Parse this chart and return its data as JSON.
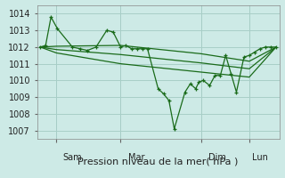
{
  "title": "Pression niveau de la mer( hPa )",
  "bg_color": "#cdeae6",
  "grid_color": "#a8cfc8",
  "line_color": "#1a6b1a",
  "ylim": [
    1006.5,
    1014.5
  ],
  "yticks": [
    1007,
    1008,
    1009,
    1010,
    1011,
    1012,
    1013,
    1014
  ],
  "x_day_labels": [
    {
      "label": "Sam",
      "x": 30
    },
    {
      "label": "Mar",
      "x": 90
    },
    {
      "label": "Dim",
      "x": 165
    },
    {
      "label": "Lun",
      "x": 205
    }
  ],
  "vlines": [
    15,
    75,
    150,
    195
  ],
  "series": [
    {
      "x": [
        0,
        5,
        10,
        16,
        30,
        37,
        44,
        52,
        62,
        68,
        75,
        80,
        85,
        90,
        95,
        100,
        110,
        115,
        120,
        125,
        135,
        140,
        145,
        148,
        152,
        158,
        163,
        168,
        173,
        178,
        183,
        190,
        195,
        200,
        205,
        210,
        215,
        220
      ],
      "y": [
        1012.0,
        1012.1,
        1013.8,
        1013.1,
        1012.0,
        1011.9,
        1011.8,
        1012.0,
        1013.0,
        1012.9,
        1012.0,
        1012.1,
        1011.9,
        1011.9,
        1011.9,
        1011.9,
        1009.5,
        1009.2,
        1008.8,
        1007.1,
        1009.3,
        1009.8,
        1009.5,
        1009.9,
        1010.0,
        1009.7,
        1010.3,
        1010.3,
        1011.5,
        1010.4,
        1009.3,
        1011.4,
        1011.5,
        1011.7,
        1011.9,
        1012.0,
        1012.0,
        1012.0
      ]
    },
    {
      "x": [
        0,
        15,
        75,
        150,
        195,
        220
      ],
      "y": [
        1012.0,
        1012.05,
        1012.1,
        1011.6,
        1011.15,
        1012.0
      ]
    },
    {
      "x": [
        0,
        15,
        75,
        150,
        195,
        220
      ],
      "y": [
        1012.0,
        1011.85,
        1011.55,
        1011.05,
        1010.7,
        1012.0
      ]
    },
    {
      "x": [
        0,
        15,
        75,
        150,
        195,
        220
      ],
      "y": [
        1012.0,
        1011.65,
        1011.0,
        1010.5,
        1010.2,
        1012.0
      ]
    }
  ],
  "xlim": [
    -3,
    223
  ],
  "xlabel_fontsize": 8,
  "tick_fontsize": 7
}
